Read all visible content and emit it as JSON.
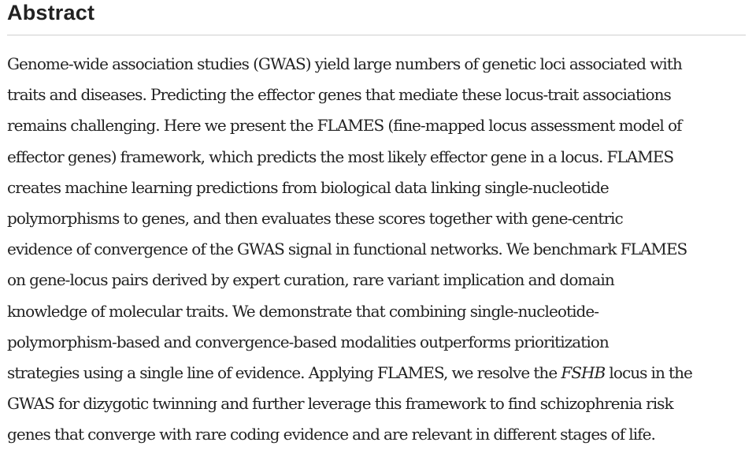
{
  "heading": "Abstract",
  "paragraph": {
    "line_01": "Genome-wide association studies (GWAS) yield large numbers of genetic loci associated with",
    "line_02": "traits and diseases. Predicting the effector genes that mediate these locus-trait associations",
    "line_03": "remains challenging. Here we present the FLAMES (fine-mapped locus assessment model of",
    "line_04": "effector genes) framework, which predicts the most likely effector gene in a locus. FLAMES",
    "line_05": "creates machine learning predictions from biological data linking single-nucleotide",
    "line_06": "polymorphisms to genes, and then evaluates these scores together with gene-centric",
    "line_07": "evidence of convergence of the GWAS signal in functional networks. We benchmark FLAMES",
    "line_08": "on gene-locus pairs derived by expert curation, rare variant implication and domain",
    "line_09": "knowledge of molecular traits. We demonstrate that combining single-nucleotide-",
    "line_10": "polymorphism-based and convergence-based modalities outperforms prioritization",
    "line_11_pre": "strategies using a single line of evidence. Applying FLAMES, we resolve the ",
    "line_11_italic": "FSHB",
    "line_11_post": " locus in the",
    "line_12": "GWAS for dizygotic twinning and further leverage this framework to find schizophrenia risk",
    "line_13": "genes that converge with rare coding evidence and are relevant in different stages of life."
  }
}
